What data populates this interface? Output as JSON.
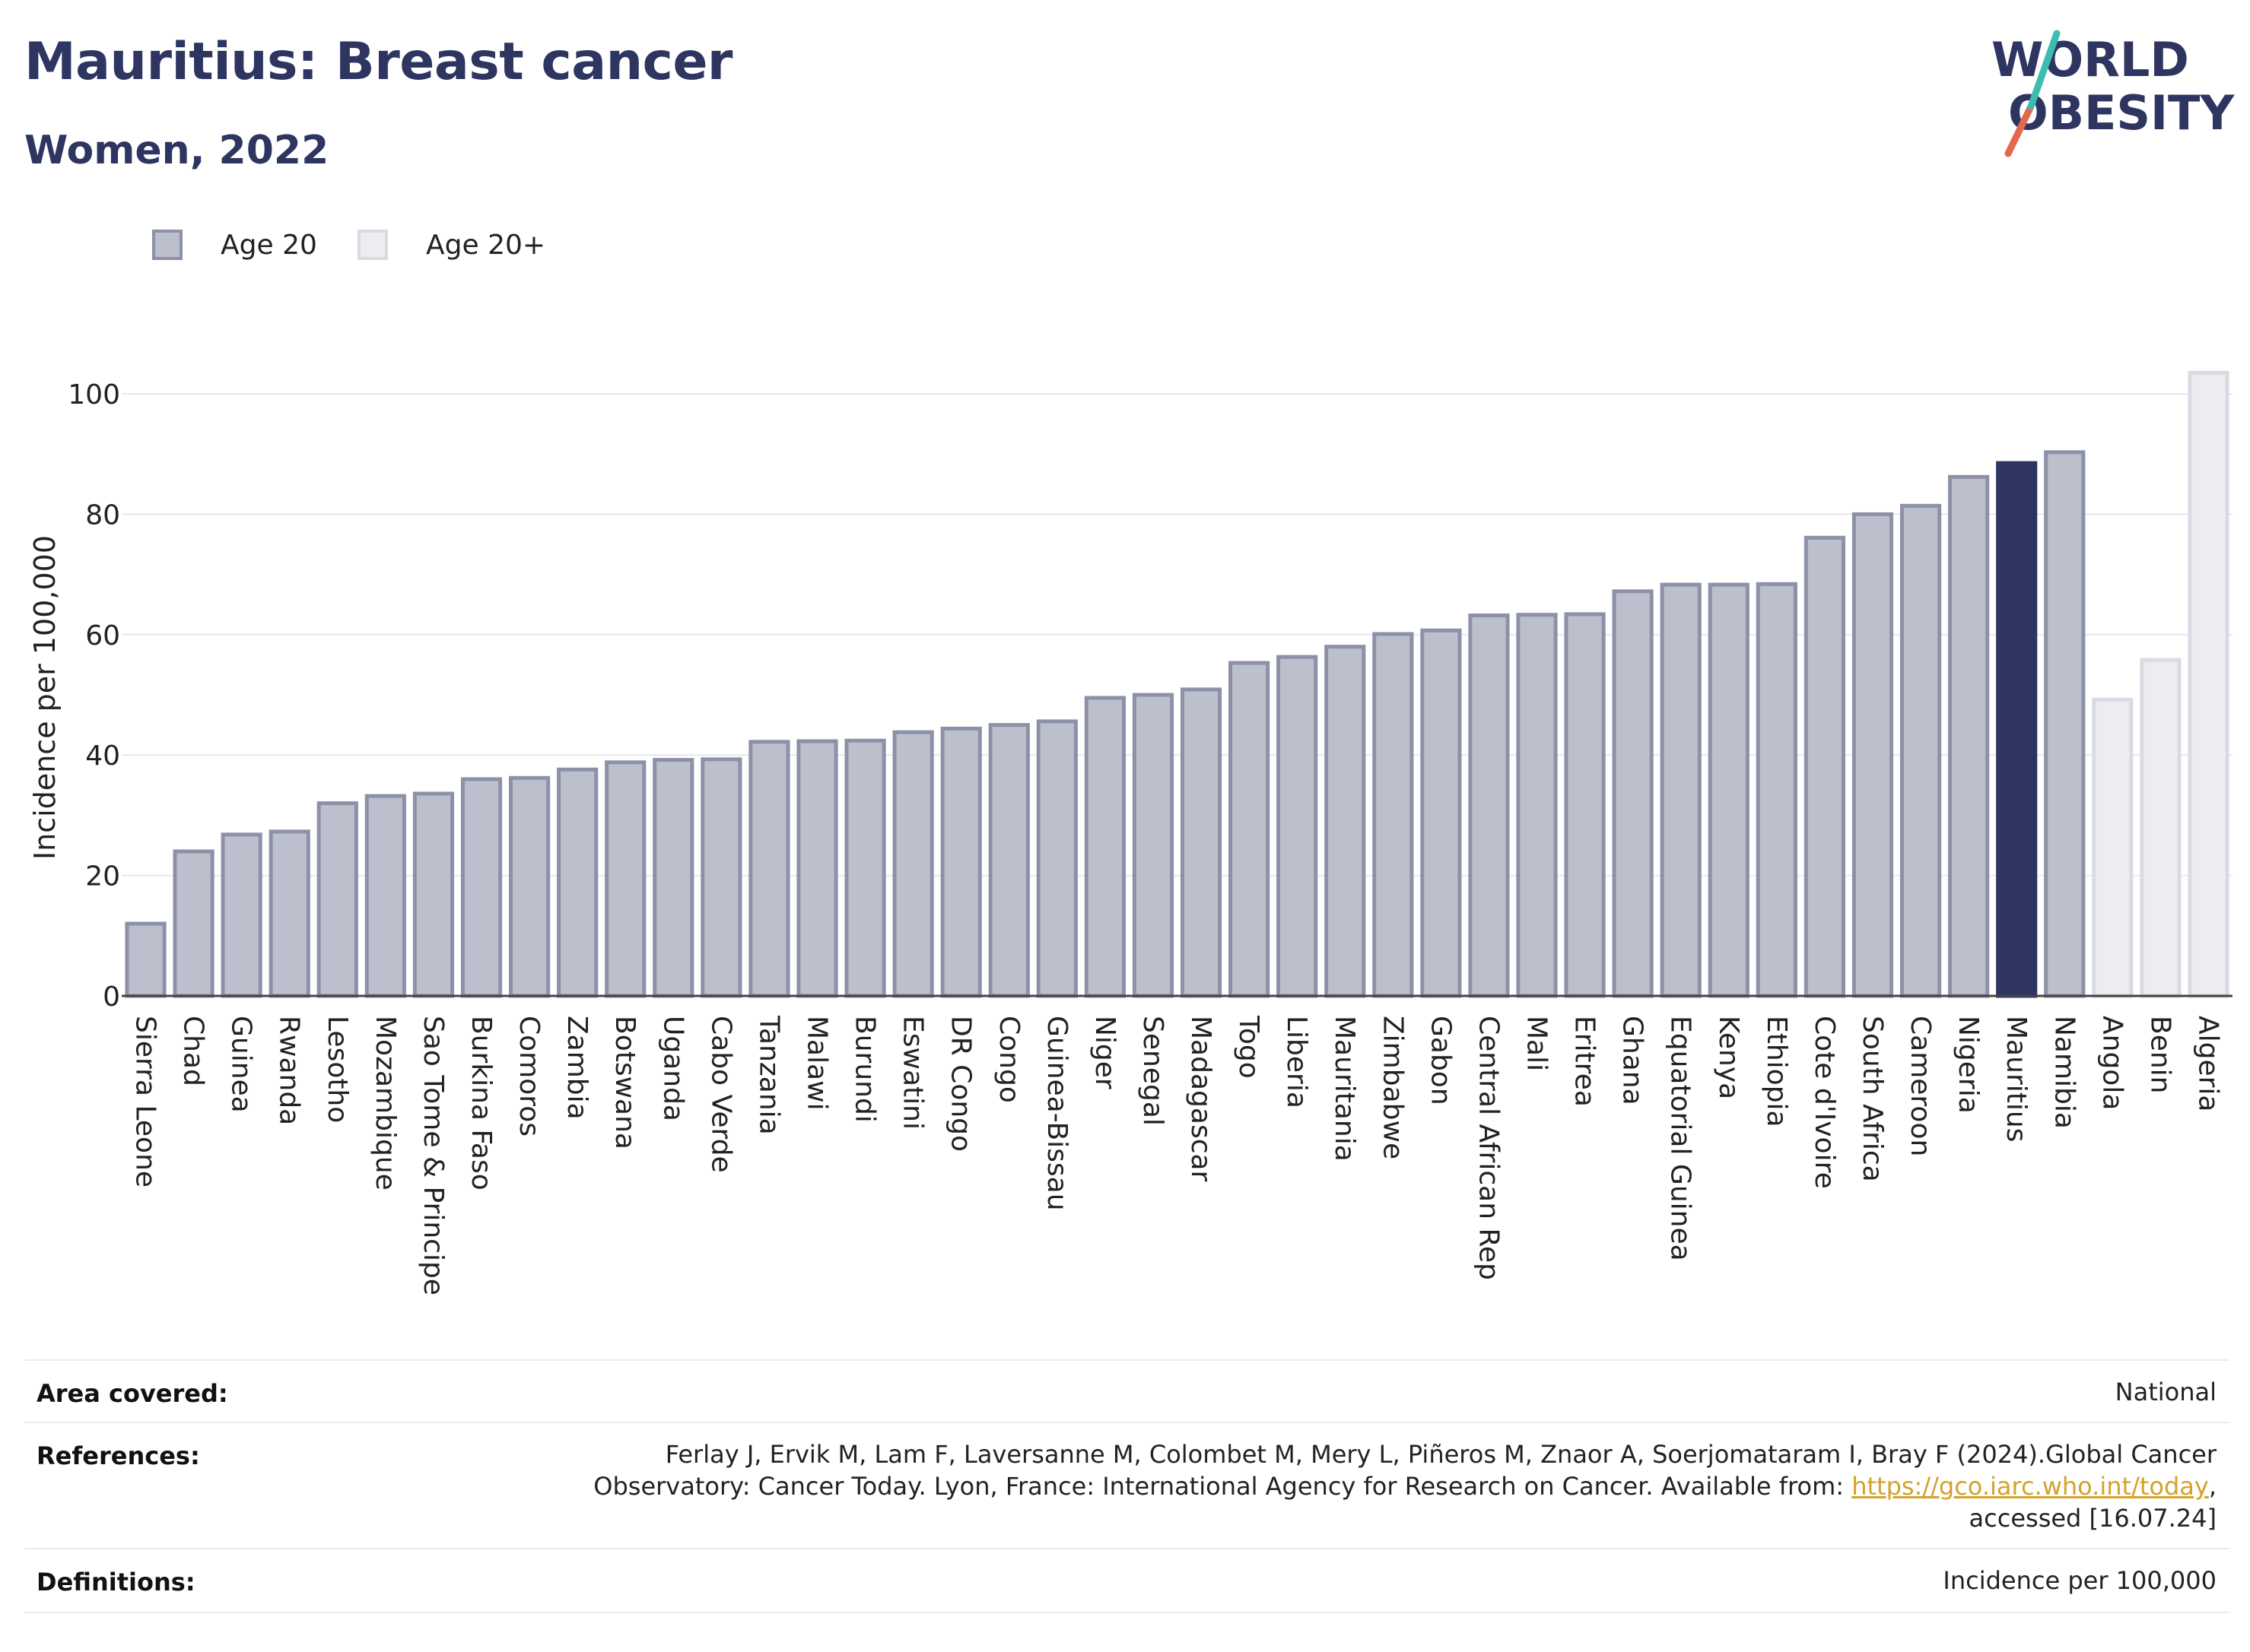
{
  "header": {
    "title": "Mauritius: Breast cancer",
    "subtitle": "Women, 2022",
    "logo_line1": "WORLD",
    "logo_line2": "OBESITY"
  },
  "legend": {
    "items": [
      {
        "label": "Age 20",
        "color": "#bcbfcc",
        "border": "#8d91a8"
      },
      {
        "label": "Age 20+",
        "color": "#ecedf1",
        "border": "#d9dbe2"
      }
    ]
  },
  "colors": {
    "bar_default": "#bcbfcc",
    "bar_default_border": "#8d91a8",
    "bar_highlight": "#2d3560",
    "bar_age20plus": "#ecedf1",
    "bar_age20plus_border": "#d9dbe2",
    "title": "#2d3560",
    "link": "#d4a22a"
  },
  "chart_data": {
    "type": "bar",
    "ylabel": "Incidence per 100,000",
    "xlabel": "",
    "ylim": [
      0,
      105
    ],
    "yticks": [
      0,
      20,
      40,
      60,
      80,
      100
    ],
    "grid": true,
    "highlight": "Mauritius",
    "categories": [
      "Sierra Leone",
      "Chad",
      "Guinea",
      "Rwanda",
      "Lesotho",
      "Mozambique",
      "Sao Tome & Principe",
      "Burkina Faso",
      "Comoros",
      "Zambia",
      "Botswana",
      "Uganda",
      "Cabo Verde",
      "Tanzania",
      "Malawi",
      "Burundi",
      "Eswatini",
      "DR Congo",
      "Congo",
      "Guinea-Bissau",
      "Niger",
      "Senegal",
      "Madagascar",
      "Togo",
      "Liberia",
      "Mauritania",
      "Zimbabwe",
      "Gabon",
      "Central African Rep",
      "Mali",
      "Eritrea",
      "Ghana",
      "Equatorial Guinea",
      "Kenya",
      "Ethiopia",
      "Cote d'Ivoire",
      "South Africa",
      "Cameroon",
      "Nigeria",
      "Mauritius",
      "Namibia",
      "Angola",
      "Benin",
      "Algeria"
    ],
    "values": [
      12,
      24,
      26.8,
      27.3,
      32,
      33.2,
      33.6,
      36,
      36.2,
      37.6,
      38.8,
      39.2,
      39.3,
      42.2,
      42.3,
      42.4,
      43.8,
      44.4,
      45,
      45.6,
      49.5,
      50,
      50.9,
      55.3,
      56.3,
      58,
      60.1,
      60.7,
      63.2,
      63.3,
      63.4,
      67.2,
      68.3,
      68.3,
      68.4,
      76.1,
      80,
      81.4,
      86.2,
      88.5,
      90.3,
      49.2,
      55.8,
      103.5
    ],
    "age_group": [
      "Age 20",
      "Age 20",
      "Age 20",
      "Age 20",
      "Age 20",
      "Age 20",
      "Age 20",
      "Age 20",
      "Age 20",
      "Age 20",
      "Age 20",
      "Age 20",
      "Age 20",
      "Age 20",
      "Age 20",
      "Age 20",
      "Age 20",
      "Age 20",
      "Age 20",
      "Age 20",
      "Age 20",
      "Age 20",
      "Age 20",
      "Age 20",
      "Age 20",
      "Age 20",
      "Age 20",
      "Age 20",
      "Age 20",
      "Age 20",
      "Age 20",
      "Age 20",
      "Age 20",
      "Age 20",
      "Age 20",
      "Age 20",
      "Age 20",
      "Age 20",
      "Age 20",
      "Age 20",
      "Age 20",
      "Age 20+",
      "Age 20+",
      "Age 20+"
    ]
  },
  "info_table": {
    "area_label": "Area covered:",
    "area_value": "National",
    "references_label": "References:",
    "references_line1": "Ferlay J, Ervik M, Lam F, Laversanne M, Colombet M, Mery L, Piñeros M, Znaor A, Soerjomataram I, Bray F (2024).Global Cancer",
    "references_line2_pre": "Observatory: Cancer Today. Lyon, France: International Agency for Research on Cancer. Available from: ",
    "references_link": "https://gco.iarc.who.int/today",
    "references_line2_post": ",",
    "references_line3": "accessed [16.07.24]",
    "definitions_label": "Definitions:",
    "definitions_value": "Incidence per 100,000"
  }
}
